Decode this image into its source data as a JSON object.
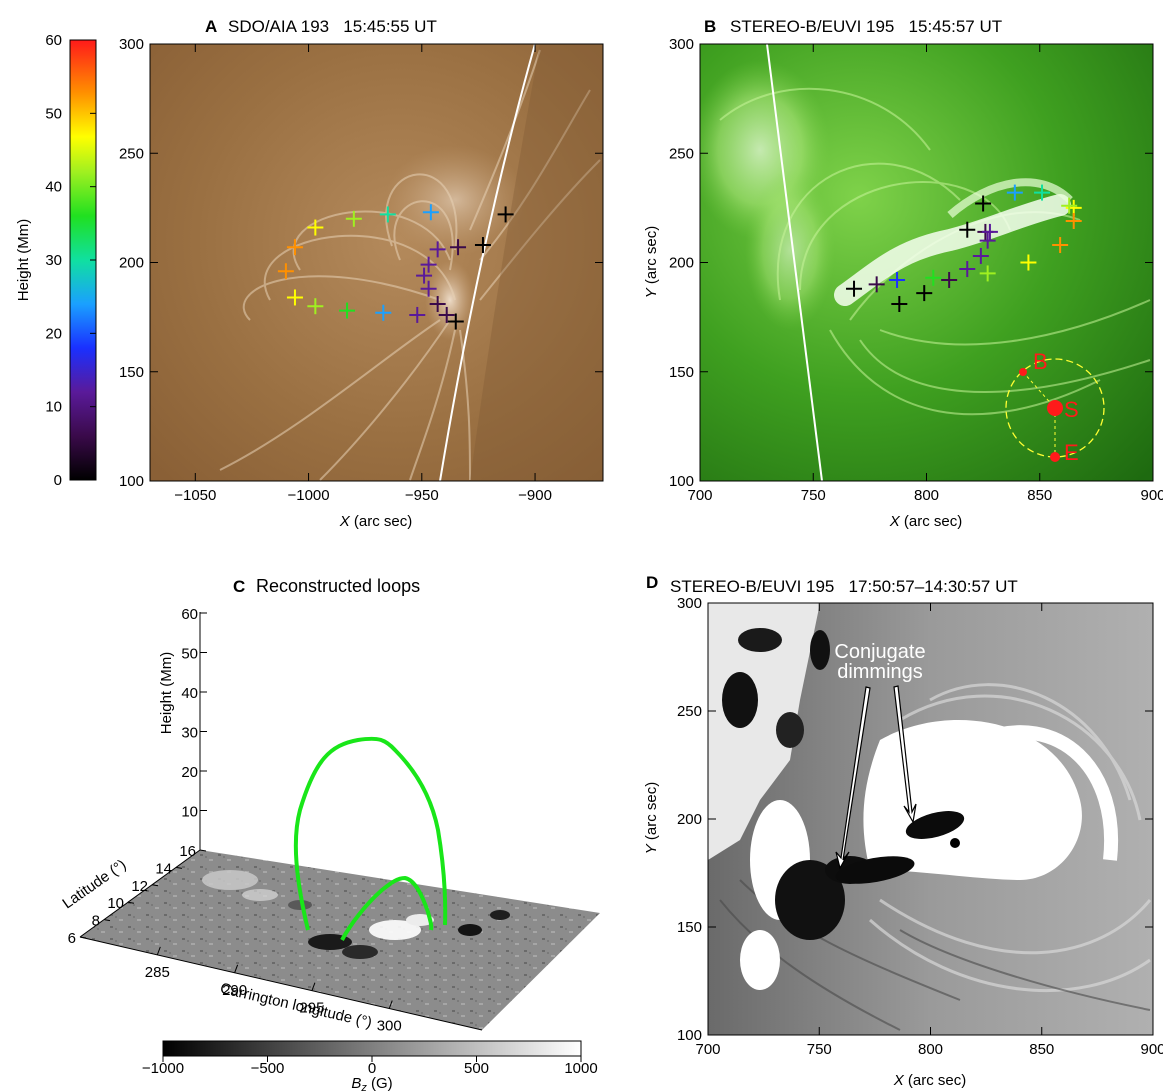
{
  "colorbar": {
    "title": "Height (Mm)",
    "ticks": [
      "0",
      "10",
      "20",
      "30",
      "40",
      "50",
      "60"
    ],
    "range": [
      0,
      60
    ]
  },
  "panel_a": {
    "letter": "A",
    "title": "SDO/AIA 193   15:45:55 UT",
    "x_ticks": [
      "−1050",
      "−1000",
      "−950",
      "−900"
    ],
    "y_ticks": [
      "100",
      "150",
      "200",
      "250",
      "300"
    ],
    "xlabel_var": "X",
    "xlabel_unit": " (arc sec)",
    "x_range": [
      -1070,
      -870
    ],
    "y_range": [
      100,
      300
    ],
    "markers": [
      {
        "x": -1010,
        "y": 196,
        "h": 54
      },
      {
        "x": -1006,
        "y": 207,
        "h": 56
      },
      {
        "x": -1006,
        "y": 184,
        "h": 50
      },
      {
        "x": -997,
        "y": 216,
        "h": 48
      },
      {
        "x": -997,
        "y": 180,
        "h": 42
      },
      {
        "x": -980,
        "y": 220,
        "h": 40
      },
      {
        "x": -983,
        "y": 178,
        "h": 35
      },
      {
        "x": -965,
        "y": 222,
        "h": 33
      },
      {
        "x": -967,
        "y": 177,
        "h": 24
      },
      {
        "x": -946,
        "y": 223,
        "h": 22
      },
      {
        "x": -952,
        "y": 176,
        "h": 12
      },
      {
        "x": -943,
        "y": 206,
        "h": 14
      },
      {
        "x": -947,
        "y": 199,
        "h": 12
      },
      {
        "x": -949,
        "y": 194,
        "h": 12
      },
      {
        "x": -947,
        "y": 188,
        "h": 11
      },
      {
        "x": -943,
        "y": 181,
        "h": 6
      },
      {
        "x": -939,
        "y": 176,
        "h": 4
      },
      {
        "x": -934,
        "y": 207,
        "h": 6
      },
      {
        "x": -935,
        "y": 173,
        "h": 1
      },
      {
        "x": -923,
        "y": 208,
        "h": 0
      },
      {
        "x": -913,
        "y": 222,
        "h": 0
      }
    ]
  },
  "panel_b": {
    "letter": "B",
    "title": "STEREO-B/EUVI 195   15:45:57 UT",
    "x_ticks": [
      "700",
      "750",
      "800",
      "850",
      "900"
    ],
    "y_ticks": [
      "100",
      "150",
      "200",
      "250",
      "300"
    ],
    "xlabel_var": "X",
    "xlabel_unit": " (arc sec)",
    "ylabel_var": "Y",
    "ylabel_unit": " (arc sec)",
    "x_range": [
      700,
      900
    ],
    "y_range": [
      100,
      300
    ],
    "geometry_labels": [
      "B",
      "S",
      "E"
    ],
    "markers": [
      {
        "x": 768,
        "y": 188,
        "h": 0
      },
      {
        "x": 778,
        "y": 190,
        "h": 6
      },
      {
        "x": 787,
        "y": 192,
        "h": 18
      },
      {
        "x": 788,
        "y": 181,
        "h": 0
      },
      {
        "x": 799,
        "y": 186,
        "h": 2
      },
      {
        "x": 803,
        "y": 193,
        "h": 35
      },
      {
        "x": 810,
        "y": 192,
        "h": 7
      },
      {
        "x": 818,
        "y": 197,
        "h": 14
      },
      {
        "x": 824,
        "y": 203,
        "h": 13
      },
      {
        "x": 827,
        "y": 210,
        "h": 12
      },
      {
        "x": 826,
        "y": 214,
        "h": 6
      },
      {
        "x": 828,
        "y": 214,
        "h": 14
      },
      {
        "x": 818,
        "y": 215,
        "h": 0
      },
      {
        "x": 825,
        "y": 227,
        "h": 0
      },
      {
        "x": 827,
        "y": 195,
        "h": 42
      },
      {
        "x": 839,
        "y": 232,
        "h": 22
      },
      {
        "x": 851,
        "y": 232,
        "h": 33
      },
      {
        "x": 845,
        "y": 200,
        "h": 48
      },
      {
        "x": 859,
        "y": 208,
        "h": 56
      },
      {
        "x": 865,
        "y": 225,
        "h": 50
      },
      {
        "x": 865,
        "y": 219,
        "h": 55
      },
      {
        "x": 863,
        "y": 226,
        "h": 40
      }
    ]
  },
  "panel_c": {
    "letter": "C",
    "title": "Reconstructed loops",
    "height_ticks": [
      "10",
      "20",
      "30",
      "40",
      "50",
      "60"
    ],
    "height_label": "Height (Mm)",
    "lat_ticks": [
      "6",
      "8",
      "10",
      "12",
      "14",
      "16"
    ],
    "lat_label": "Latitude (°)",
    "lon_ticks": [
      "285",
      "290",
      "295",
      "300"
    ],
    "lon_label": "Carrington longitude (°)",
    "bz_ticks": [
      "−1000",
      "−500",
      "0",
      "500",
      "1000"
    ],
    "bz_label_var": "B",
    "bz_label_sub": "z",
    "bz_label_unit": " (G)",
    "loop_color": "#19e619"
  },
  "panel_d": {
    "letter": "D",
    "title": "STEREO-B/EUVI 195   17:50:57–14:30:57 UT",
    "x_ticks": [
      "700",
      "750",
      "800",
      "850",
      "900"
    ],
    "y_ticks": [
      "100",
      "150",
      "200",
      "250",
      "300"
    ],
    "xlabel_var": "X",
    "xlabel_unit": " (arc sec)",
    "ylabel_var": "Y",
    "ylabel_unit": " (arc sec)",
    "x_range": [
      700,
      900
    ],
    "y_range": [
      100,
      300
    ],
    "annotation_line1": "Conjugate",
    "annotation_line2": "dimmings"
  }
}
